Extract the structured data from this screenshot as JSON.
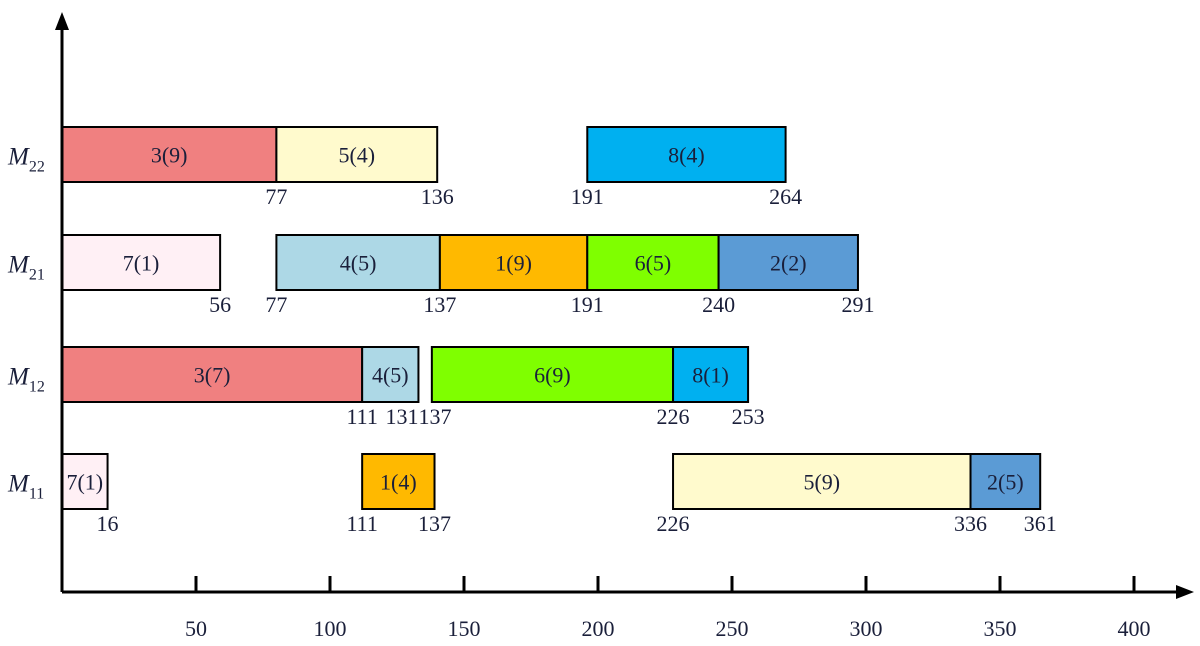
{
  "chart_data": {
    "type": "gantt",
    "title": "",
    "xlabel": "",
    "ylabel": "",
    "xlim": [
      0,
      400
    ],
    "x_ticks": [
      50,
      100,
      150,
      200,
      250,
      300,
      350,
      400
    ],
    "grid": false,
    "rows": [
      {
        "machine": "M",
        "sub": "22",
        "tasks": [
          {
            "label": "3(9)",
            "start": 0,
            "end": 80,
            "color": "#f08080"
          },
          {
            "label": "5(4)",
            "start": 80,
            "end": 140,
            "color": "#fffacd"
          },
          {
            "label": "8(4)",
            "start": 196,
            "end": 270,
            "color": "#00b0f0"
          }
        ],
        "marks": [
          {
            "text": "77",
            "at": 80,
            "align": "center"
          },
          {
            "text": "136",
            "at": 140,
            "align": "center"
          },
          {
            "text": "191",
            "at": 196,
            "align": "center"
          },
          {
            "text": "264",
            "at": 270,
            "align": "center"
          }
        ]
      },
      {
        "machine": "M",
        "sub": "21",
        "tasks": [
          {
            "label": "7(1)",
            "start": 0,
            "end": 59,
            "color": "#fff0f5"
          },
          {
            "label": "4(5)",
            "start": 80,
            "end": 141,
            "color": "#add8e6"
          },
          {
            "label": "1(9)",
            "start": 141,
            "end": 196,
            "color": "#ffb900"
          },
          {
            "label": "6(5)",
            "start": 196,
            "end": 245,
            "color": "#7fff00"
          },
          {
            "label": "2(2)",
            "start": 245,
            "end": 297,
            "color": "#5b9bd5"
          }
        ],
        "marks": [
          {
            "text": "56",
            "at": 59,
            "align": "center"
          },
          {
            "text": "77",
            "at": 80,
            "align": "center"
          },
          {
            "text": "137",
            "at": 141,
            "align": "center"
          },
          {
            "text": "191",
            "at": 196,
            "align": "center"
          },
          {
            "text": "240",
            "at": 245,
            "align": "center"
          },
          {
            "text": "291",
            "at": 297,
            "align": "center"
          }
        ]
      },
      {
        "machine": "M",
        "sub": "12",
        "tasks": [
          {
            "label": "3(7)",
            "start": 0,
            "end": 112,
            "color": "#f08080"
          },
          {
            "label": "4(5)",
            "start": 112,
            "end": 133,
            "color": "#add8e6"
          },
          {
            "label": "6(9)",
            "start": 138,
            "end": 228,
            "color": "#7fff00"
          },
          {
            "label": "8(1)",
            "start": 228,
            "end": 256,
            "color": "#00b0f0"
          }
        ],
        "marks": [
          {
            "text": "111",
            "at": 112,
            "align": "center"
          },
          {
            "text": "131",
            "at": 133,
            "align": "right"
          },
          {
            "text": "137",
            "at": 133,
            "align": "left"
          },
          {
            "text": "226",
            "at": 228,
            "align": "center"
          },
          {
            "text": "253",
            "at": 256,
            "align": "center"
          }
        ]
      },
      {
        "machine": "M",
        "sub": "11",
        "tasks": [
          {
            "label": "7(1)",
            "start": 0,
            "end": 17,
            "color": "#fff0f5"
          },
          {
            "label": "1(4)",
            "start": 112,
            "end": 139,
            "color": "#ffb900"
          },
          {
            "label": "5(9)",
            "start": 228,
            "end": 339,
            "color": "#fffacd"
          },
          {
            "label": "2(5)",
            "start": 339,
            "end": 365,
            "color": "#5b9bd5"
          }
        ],
        "marks": [
          {
            "text": "16",
            "at": 17,
            "align": "center"
          },
          {
            "text": "111",
            "at": 112,
            "align": "center"
          },
          {
            "text": "137",
            "at": 139,
            "align": "center"
          },
          {
            "text": "226",
            "at": 228,
            "align": "center"
          },
          {
            "text": "336",
            "at": 339,
            "align": "center"
          },
          {
            "text": "361",
            "at": 365,
            "align": "center"
          }
        ]
      }
    ]
  }
}
